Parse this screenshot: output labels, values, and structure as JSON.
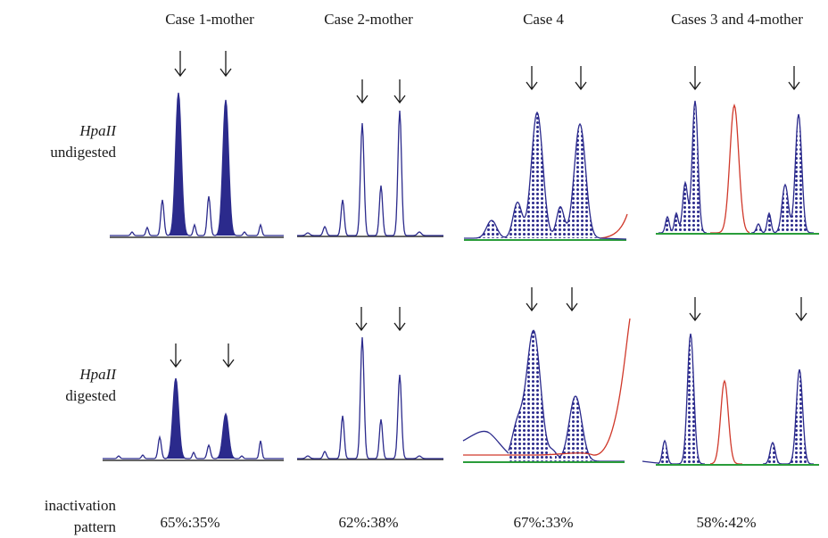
{
  "columns": [
    {
      "title": "Case 1-mother",
      "ratio": "65%:35%"
    },
    {
      "title": "Case 2-mother",
      "ratio": "62%:38%"
    },
    {
      "title": "Case 4",
      "ratio": "67%:33%"
    },
    {
      "title": "Cases 3 and 4-mother",
      "ratio": "58%:42%"
    }
  ],
  "rows": [
    {
      "label_italic": "HpaII",
      "label": "undigested"
    },
    {
      "label_italic": "HpaII",
      "label": "digested"
    }
  ],
  "footer": {
    "line1": "inactivation",
    "line2": "pattern"
  },
  "colors": {
    "trace": "#2b2a8c",
    "fill_solid": "#2b2a8c",
    "dot": "#2b2a8c",
    "red_trace": "#d0392b",
    "green_baseline": "#2a9d3a",
    "arrow": "#1a1a1a"
  }
}
